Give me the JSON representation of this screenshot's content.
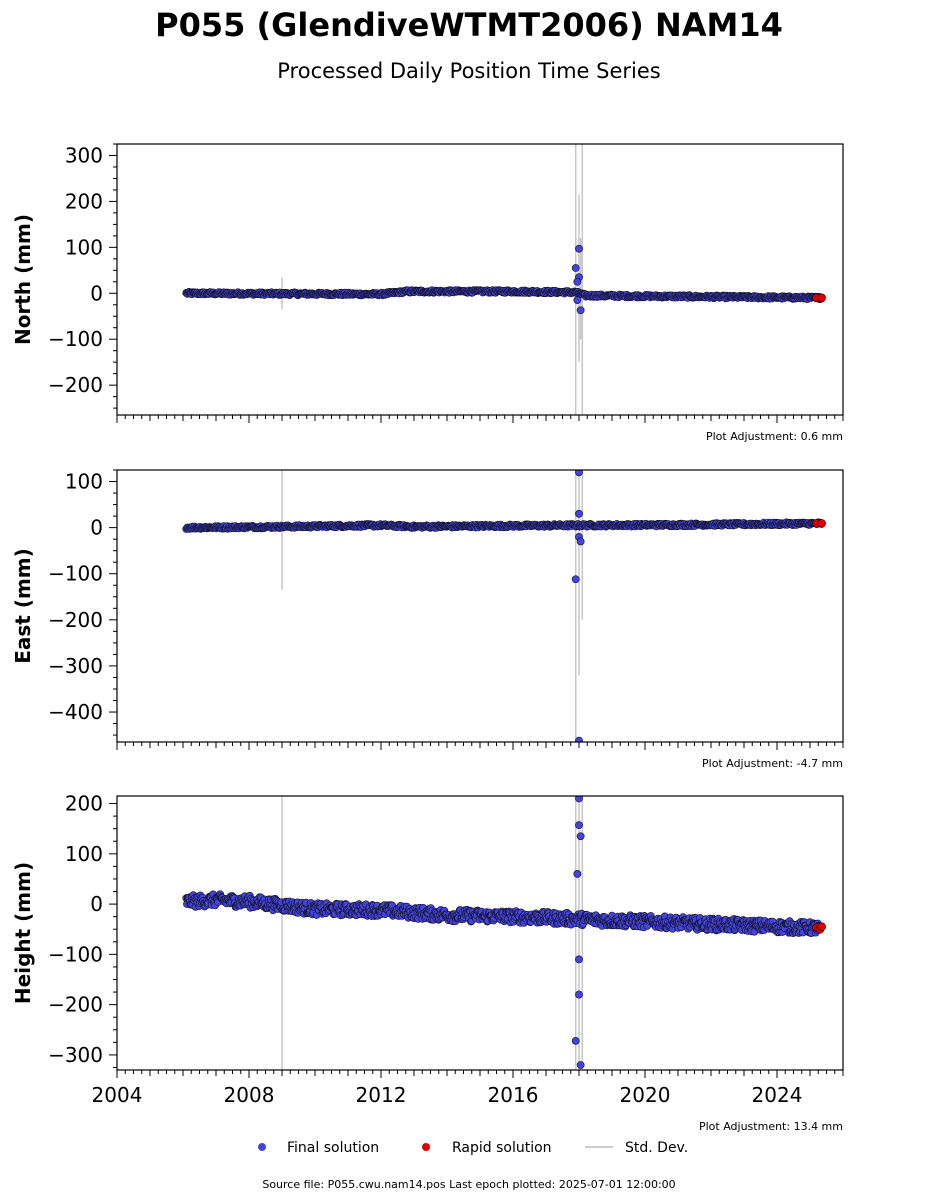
{
  "title": "P055 (GlendiveWTMT2006) NAM14",
  "subtitle": "Processed Daily Position Time Series",
  "footer": "Source file: P055.cwu.nam14.pos  Last epoch plotted: 2025-07-01 12:00:00",
  "legend": [
    {
      "label": "Final solution",
      "color": "#4444dd",
      "kind": "dot"
    },
    {
      "label": "Rapid solution",
      "color": "#dd0000",
      "kind": "dot"
    },
    {
      "label": "Std. Dev.",
      "color": "#cccccc",
      "kind": "line"
    }
  ],
  "chart_data": [
    {
      "type": "scatter",
      "ylabel": "North (mm)",
      "xlim": [
        2004,
        2026
      ],
      "ylim": [
        -265,
        325
      ],
      "yticks": [
        -200,
        -100,
        0,
        100,
        200,
        300
      ],
      "xticks": [
        2004,
        2008,
        2012,
        2016,
        2020,
        2024
      ],
      "show_xtick_labels": false,
      "adjustment": "Plot Adjustment: 0.6 mm",
      "final_trend": [
        [
          2006.1,
          0
        ],
        [
          2009,
          -1
        ],
        [
          2012,
          -2
        ],
        [
          2012.8,
          4
        ],
        [
          2016,
          4
        ],
        [
          2017.9,
          2
        ],
        [
          2018.2,
          -5
        ],
        [
          2021,
          -7
        ],
        [
          2025.3,
          -10
        ]
      ],
      "final_spread": 3,
      "rapid": [
        [
          2025.2,
          -10
        ],
        [
          2025.35,
          -10
        ]
      ],
      "outliers": [
        [
          2017.9,
          55
        ],
        [
          2018.0,
          97
        ],
        [
          2018.0,
          35
        ],
        [
          2017.95,
          25
        ],
        [
          2017.95,
          -15
        ],
        [
          2018.05,
          -37
        ]
      ],
      "stddev_bars": [
        [
          2009.0,
          -35,
          35
        ],
        [
          2017.9,
          -270,
          325
        ],
        [
          2018.0,
          -150,
          215
        ],
        [
          2018.1,
          -270,
          325
        ],
        [
          2018.05,
          -100,
          120
        ]
      ]
    },
    {
      "type": "scatter",
      "ylabel": "East (mm)",
      "xlim": [
        2004,
        2026
      ],
      "ylim": [
        -465,
        125
      ],
      "yticks": [
        -400,
        -300,
        -200,
        -100,
        0,
        100
      ],
      "xticks": [
        2004,
        2008,
        2012,
        2016,
        2020,
        2024
      ],
      "show_xtick_labels": false,
      "adjustment": "Plot Adjustment: -4.7 mm",
      "final_trend": [
        [
          2006.1,
          0
        ],
        [
          2009,
          2
        ],
        [
          2012,
          5
        ],
        [
          2013,
          2
        ],
        [
          2016,
          4
        ],
        [
          2018,
          5
        ],
        [
          2021,
          6
        ],
        [
          2025.3,
          9
        ]
      ],
      "final_spread": 3,
      "rapid": [
        [
          2025.2,
          9
        ],
        [
          2025.35,
          9
        ]
      ],
      "outliers": [
        [
          2018.0,
          120
        ],
        [
          2018.0,
          30
        ],
        [
          2017.9,
          -112
        ],
        [
          2018.0,
          -20
        ],
        [
          2018.05,
          -30
        ],
        [
          2018.0,
          -462
        ]
      ],
      "stddev_bars": [
        [
          2009.0,
          -135,
          125
        ],
        [
          2017.9,
          -470,
          125
        ],
        [
          2018.0,
          -320,
          125
        ],
        [
          2018.1,
          -200,
          125
        ]
      ]
    },
    {
      "type": "scatter",
      "ylabel": "Height (mm)",
      "xlim": [
        2004,
        2026
      ],
      "ylim": [
        -330,
        215
      ],
      "yticks": [
        -300,
        -200,
        -100,
        0,
        100,
        200
      ],
      "xticks": [
        2004,
        2008,
        2012,
        2016,
        2020,
        2024
      ],
      "show_xtick_labels": true,
      "adjustment": "Plot Adjustment: 13.4 mm",
      "final_trend": [
        [
          2006.1,
          5
        ],
        [
          2007,
          8
        ],
        [
          2008,
          5
        ],
        [
          2010,
          -10
        ],
        [
          2012,
          -12
        ],
        [
          2014,
          -22
        ],
        [
          2016,
          -25
        ],
        [
          2018,
          -30
        ],
        [
          2020,
          -35
        ],
        [
          2022,
          -40
        ],
        [
          2025.3,
          -48
        ]
      ],
      "final_spread": 12,
      "rapid": [
        [
          2025.2,
          -47
        ],
        [
          2025.3,
          -50
        ],
        [
          2025.35,
          -45
        ]
      ],
      "outliers": [
        [
          2018.0,
          210
        ],
        [
          2018.0,
          157
        ],
        [
          2018.05,
          135
        ],
        [
          2017.95,
          60
        ],
        [
          2018.0,
          -110
        ],
        [
          2018.0,
          -180
        ],
        [
          2017.9,
          -272
        ],
        [
          2018.05,
          -320
        ]
      ],
      "stddev_bars": [
        [
          2009.0,
          -330,
          215
        ],
        [
          2017.9,
          -330,
          215
        ],
        [
          2018.0,
          -330,
          215
        ],
        [
          2018.1,
          -330,
          215
        ]
      ]
    }
  ]
}
